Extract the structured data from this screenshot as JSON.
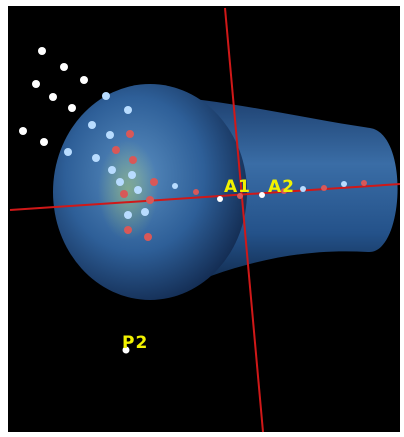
{
  "labels": [
    "A1",
    "A2",
    "P2"
  ]
}
